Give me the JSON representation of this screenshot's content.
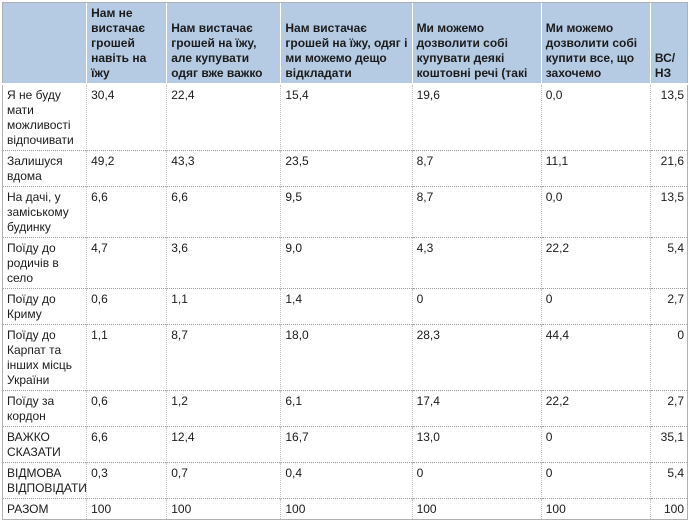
{
  "chart_data": {
    "type": "table",
    "corner_label": "",
    "columns": [
      "Нам не вистачає грошей навіть на їжу",
      "Нам вистачає грошей на їжу, але купувати одяг вже важко",
      "Нам вистачає грошей на їжу, одяг і ми можемо дещо відкладати",
      "Ми можемо дозволити собі купувати деякі коштовні речі (такі",
      "Ми можемо дозволити собі купити все, що захочемо",
      "ВС/НЗ"
    ],
    "rows": [
      {
        "label": "Я не буду мати можливості відпочивати",
        "values": [
          "30,4",
          "22,4",
          "15,4",
          "19,6",
          "0,0",
          "13,5"
        ]
      },
      {
        "label": "Залишуся вдома",
        "values": [
          "49,2",
          "43,3",
          "23,5",
          "8,7",
          "11,1",
          "21,6"
        ]
      },
      {
        "label": "На дачі, у заміському будинку",
        "values": [
          "6,6",
          "6,6",
          "9,5",
          "8,7",
          "0,0",
          "13,5"
        ]
      },
      {
        "label": "Поїду до родичів в село",
        "values": [
          "4,7",
          "3,6",
          "9,0",
          "4,3",
          "22,2",
          "5,4"
        ]
      },
      {
        "label": "Поїду до Криму",
        "values": [
          "0,6",
          "1,1",
          "1,4",
          "0",
          "0",
          "2,7"
        ]
      },
      {
        "label": "Поїду до Карпат та інших місць України",
        "values": [
          "1,1",
          "8,7",
          "18,0",
          "28,3",
          "44,4",
          "0"
        ]
      },
      {
        "label": "Поїду за кордон",
        "values": [
          "0,6",
          "1,2",
          "6,1",
          "17,4",
          "22,2",
          "2,7"
        ]
      },
      {
        "label": "ВАЖКО СКАЗАТИ",
        "values": [
          "6,6",
          "12,4",
          "16,7",
          "13,0",
          "0",
          "35,1"
        ]
      },
      {
        "label": "ВІДМОВА ВІДПОВІДАТИ",
        "values": [
          "0,3",
          "0,7",
          "0,4",
          "0",
          "0",
          "5,4"
        ]
      },
      {
        "label": "РАЗОМ",
        "values": [
          "100",
          "100",
          "100",
          "100",
          "100",
          "100"
        ]
      }
    ]
  },
  "colors": {
    "header_bg": "#b5cbe3",
    "text": "#1b1b1b",
    "row_separator": "#9e9e9e",
    "column_separator": "#c4c4c4",
    "header_separator": "#ffffff",
    "outer_border": "#b0b0b0"
  }
}
